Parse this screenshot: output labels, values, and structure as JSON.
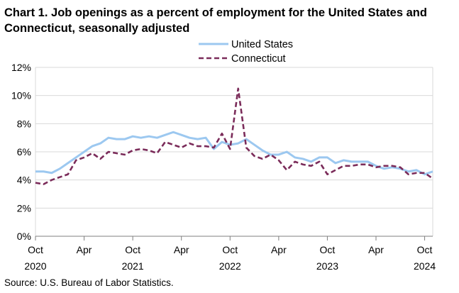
{
  "title": "Chart 1. Job openings as a percent of employment for the United States and Connecticut, seasonally adjusted",
  "source": "Source: U.S. Bureau of Labor Statistics.",
  "chart_data": {
    "type": "line",
    "title": "Chart 1. Job openings as a percent of employment for the United States and Connecticut, seasonally adjusted",
    "xlabel": "",
    "ylabel": "",
    "ylim": [
      0,
      12
    ],
    "yticks": [
      "0%",
      "2%",
      "4%",
      "6%",
      "8%",
      "10%",
      "12%"
    ],
    "ytick_values": [
      0,
      2,
      4,
      6,
      8,
      10,
      12
    ],
    "xticks": [
      {
        "index": 0,
        "month": "Oct",
        "year": "2020"
      },
      {
        "index": 6,
        "month": "Apr",
        "year": ""
      },
      {
        "index": 12,
        "month": "Oct",
        "year": "2021"
      },
      {
        "index": 18,
        "month": "Apr",
        "year": ""
      },
      {
        "index": 24,
        "month": "Oct",
        "year": "2022"
      },
      {
        "index": 30,
        "month": "Apr",
        "year": ""
      },
      {
        "index": 36,
        "month": "Oct",
        "year": "2023"
      },
      {
        "index": 42,
        "month": "Apr",
        "year": ""
      },
      {
        "index": 48,
        "month": "Oct",
        "year": "2024"
      }
    ],
    "x_start": "Oct 2020",
    "x_end": "Oct 2024",
    "legend_position": "top-right",
    "series": [
      {
        "name": "United States",
        "color": "#9cc8f0",
        "style": "solid",
        "values": [
          4.6,
          4.6,
          4.5,
          4.8,
          5.2,
          5.6,
          6.0,
          6.4,
          6.6,
          7.0,
          6.9,
          6.9,
          7.1,
          7.0,
          7.1,
          7.0,
          7.2,
          7.4,
          7.2,
          7.0,
          6.9,
          7.0,
          6.2,
          6.7,
          6.5,
          6.6,
          6.9,
          6.5,
          6.1,
          5.8,
          5.8,
          6.0,
          5.6,
          5.5,
          5.3,
          5.6,
          5.6,
          5.2,
          5.4,
          5.3,
          5.3,
          5.3,
          5.0,
          4.8,
          4.9,
          4.8,
          4.6,
          4.7,
          4.4,
          4.6
        ]
      },
      {
        "name": "Connecticut",
        "color": "#7b2c5a",
        "style": "dashed",
        "values": [
          3.8,
          3.7,
          4.0,
          4.2,
          4.4,
          5.4,
          5.6,
          5.9,
          5.5,
          6.0,
          5.9,
          5.8,
          6.1,
          6.2,
          6.1,
          5.9,
          6.7,
          6.5,
          6.3,
          6.6,
          6.4,
          6.4,
          6.3,
          7.3,
          6.2,
          10.5,
          6.3,
          5.7,
          5.5,
          5.8,
          5.4,
          4.7,
          5.3,
          5.1,
          5.0,
          5.3,
          4.4,
          4.7,
          5.0,
          5.0,
          5.1,
          5.1,
          4.9,
          5.0,
          5.0,
          4.9,
          4.4,
          4.5,
          4.5,
          4.1
        ]
      }
    ]
  }
}
